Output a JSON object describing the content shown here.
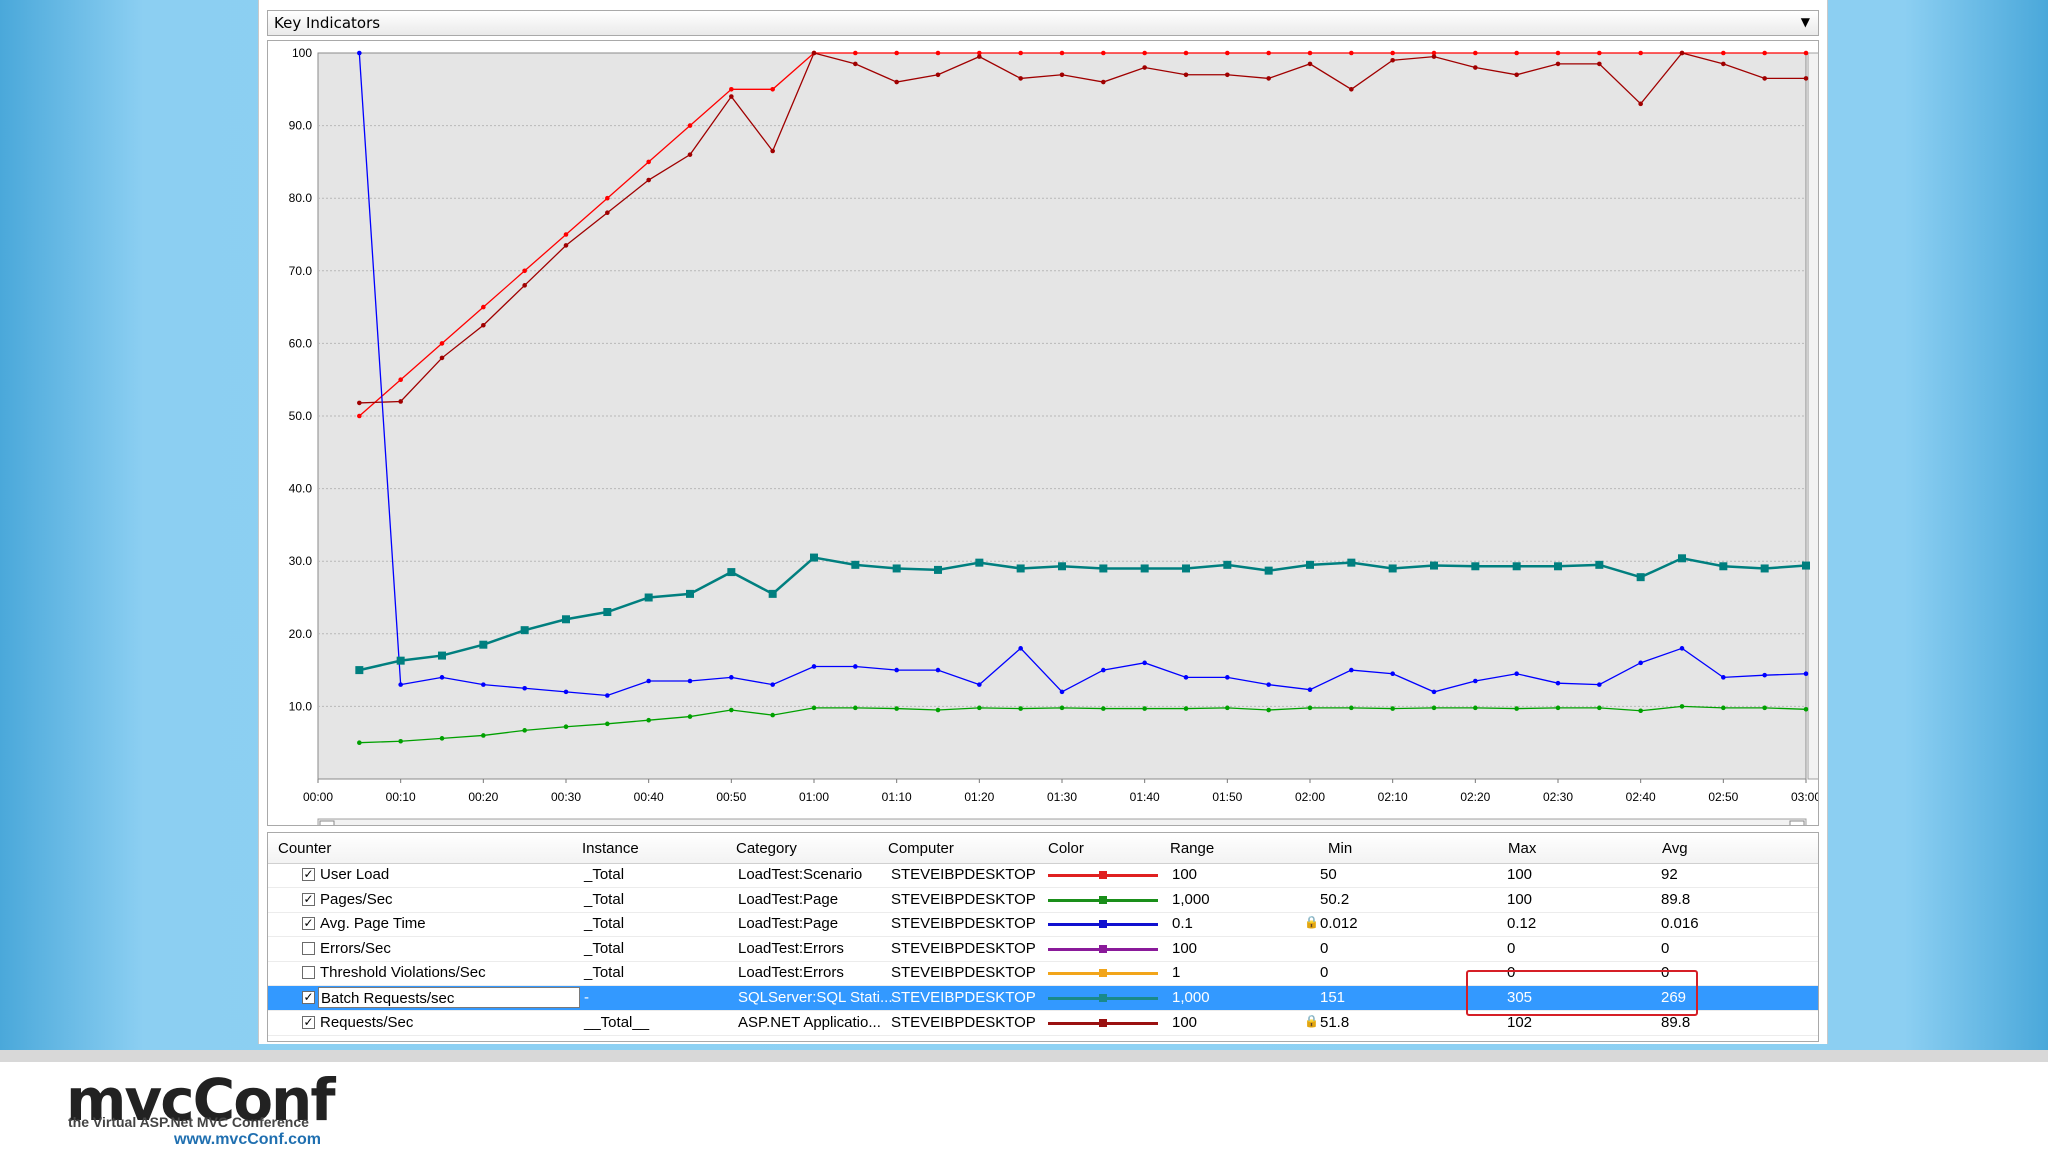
{
  "window": {
    "title": "Key Indicators"
  },
  "chart_data": {
    "type": "line",
    "y_ticks": [
      "100",
      "90.0",
      "80.0",
      "70.0",
      "60.0",
      "50.0",
      "40.0",
      "30.0",
      "20.0",
      "10.0"
    ],
    "x_ticks": [
      "00:00",
      "00:10",
      "00:20",
      "00:30",
      "00:40",
      "00:50",
      "01:00",
      "01:10",
      "01:20",
      "01:30",
      "01:40",
      "01:50",
      "02:00",
      "02:10",
      "02:20",
      "02:30",
      "02:40",
      "02:50",
      "03:00"
    ],
    "x_seconds": [
      5,
      10,
      15,
      20,
      25,
      30,
      35,
      40,
      45,
      50,
      55,
      60,
      65,
      70,
      75,
      80,
      85,
      90,
      95,
      100,
      105,
      110,
      115,
      120,
      125,
      130,
      135,
      140,
      145,
      150,
      155,
      160,
      165,
      170,
      175,
      180
    ],
    "ylim": [
      0,
      100
    ],
    "xlim": [
      0,
      180
    ],
    "grid": true,
    "series": [
      {
        "name": "User Load",
        "color": "#ff0000",
        "marker": "dot",
        "values": [
          50,
          55,
          60,
          65,
          70,
          75,
          80,
          85,
          90,
          95,
          95,
          100,
          100,
          100,
          100,
          100,
          100,
          100,
          100,
          100,
          100,
          100,
          100,
          100,
          100,
          100,
          100,
          100,
          100,
          100,
          100,
          100,
          100,
          100,
          100,
          100
        ]
      },
      {
        "name": "Requests/Sec",
        "color": "#a00000",
        "marker": "dot",
        "values": [
          51.8,
          52,
          58,
          62.5,
          68,
          73.5,
          78,
          82.5,
          86,
          94,
          86.5,
          100,
          98.5,
          96,
          97,
          99.5,
          96.5,
          97,
          96,
          98,
          97,
          97,
          96.5,
          98.5,
          95,
          99,
          99.5,
          98,
          97,
          98.5,
          98.5,
          93,
          100,
          98.5,
          96.5,
          96.5
        ]
      },
      {
        "name": "Avg. Page Time",
        "color": "#0000ff",
        "marker": "dot",
        "values": [
          100,
          13,
          14,
          13,
          12.5,
          12,
          11.5,
          13.5,
          13.5,
          14,
          13,
          15.5,
          15.5,
          15,
          15,
          13,
          18,
          12,
          15,
          16,
          14,
          14,
          13,
          12.3,
          15,
          14.5,
          12,
          13.5,
          14.5,
          13.2,
          13,
          16,
          18,
          14,
          14.3,
          14.5
        ]
      },
      {
        "name": "Batch Requests/sec",
        "color": "#007f7f",
        "marker": "square",
        "values": [
          15,
          16.3,
          17,
          18.5,
          20.5,
          22,
          23,
          25,
          25.5,
          28.5,
          25.5,
          30.5,
          29.5,
          29,
          28.8,
          29.8,
          29,
          29.3,
          29,
          29,
          29,
          29.5,
          28.7,
          29.5,
          29.8,
          29,
          29.4,
          29.3,
          29.3,
          29.3,
          29.5,
          27.8,
          30.4,
          29.3,
          29,
          29.4
        ]
      },
      {
        "name": "Pages/Sec",
        "color": "#00a000",
        "marker": "dot",
        "values": [
          5,
          5.2,
          5.6,
          6,
          6.7,
          7.2,
          7.6,
          8.1,
          8.6,
          9.5,
          8.8,
          9.8,
          9.8,
          9.7,
          9.5,
          9.8,
          9.7,
          9.8,
          9.7,
          9.7,
          9.7,
          9.8,
          9.5,
          9.8,
          9.8,
          9.7,
          9.8,
          9.8,
          9.7,
          9.8,
          9.8,
          9.4,
          10,
          9.8,
          9.8,
          9.6
        ]
      }
    ]
  },
  "grid": {
    "headers": [
      "Counter",
      "Instance",
      "Category",
      "Computer",
      "Color",
      "Range",
      "Min",
      "Max",
      "Avg"
    ],
    "rows": [
      {
        "checked": true,
        "counter": "User Load",
        "instance": "_Total",
        "category": "LoadTest:Scenario",
        "computer": "STEVEIBPDESKTOP",
        "color": "#e02020",
        "range": "100",
        "min": "50",
        "min_locked": false,
        "max": "100",
        "avg": "92",
        "selected": false
      },
      {
        "checked": true,
        "counter": "Pages/Sec",
        "instance": "_Total",
        "category": "LoadTest:Page",
        "computer": "STEVEIBPDESKTOP",
        "color": "#1a8f1a",
        "range": "1,000",
        "min": "50.2",
        "min_locked": false,
        "max": "100",
        "avg": "89.8",
        "selected": false
      },
      {
        "checked": true,
        "counter": "Avg. Page Time",
        "instance": "_Total",
        "category": "LoadTest:Page",
        "computer": "STEVEIBPDESKTOP",
        "color": "#1010d0",
        "range": "0.1",
        "min": "0.012",
        "min_locked": true,
        "max": "0.12",
        "avg": "0.016",
        "selected": false
      },
      {
        "checked": false,
        "counter": "Errors/Sec",
        "instance": "_Total",
        "category": "LoadTest:Errors",
        "computer": "STEVEIBPDESKTOP",
        "color": "#8a1a9a",
        "range": "100",
        "min": "0",
        "min_locked": false,
        "max": "0",
        "avg": "0",
        "selected": false
      },
      {
        "checked": false,
        "counter": "Threshold Violations/Sec",
        "instance": "_Total",
        "category": "LoadTest:Errors",
        "computer": "STEVEIBPDESKTOP",
        "color": "#f2a51a",
        "range": "1",
        "min": "0",
        "min_locked": false,
        "max": "0",
        "avg": "0",
        "selected": false
      },
      {
        "checked": true,
        "counter": "Batch Requests/sec",
        "instance": "-",
        "category": "SQLServer:SQL Stati...",
        "computer": "STEVEIBPDESKTOP",
        "color": "#1a8a8a",
        "range": "1,000",
        "min": "151",
        "min_locked": false,
        "max": "305",
        "avg": "269",
        "selected": true
      },
      {
        "checked": true,
        "counter": "Requests/Sec",
        "instance": "__Total__",
        "category": "ASP.NET Applicatio...",
        "computer": "STEVEIBPDESKTOP",
        "color": "#9a1010",
        "range": "100",
        "min": "51.8",
        "min_locked": true,
        "max": "102",
        "avg": "89.8",
        "selected": false
      }
    ]
  },
  "logo": {
    "name": "mvcConf",
    "tagline": "the Virtual ASP.Net MVC Conference",
    "url": "www.mvcConf.com"
  }
}
